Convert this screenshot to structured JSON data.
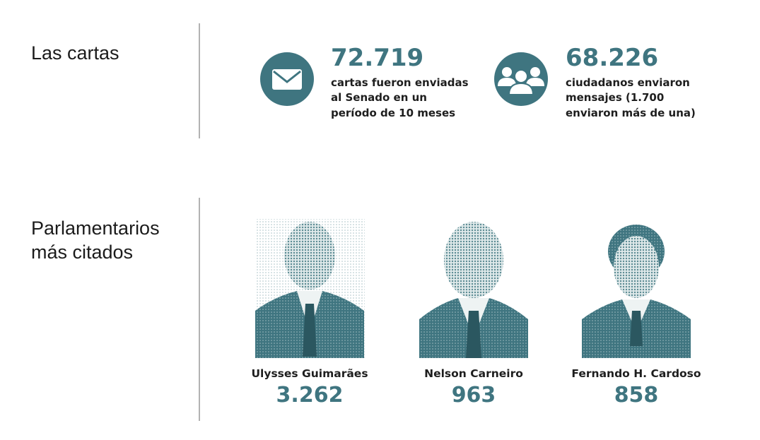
{
  "sections": [
    {
      "title": "Las cartas",
      "stats": [
        {
          "value": "72.719",
          "lines": [
            "cartas fueron enviadas",
            "al Senado en un",
            "período de 10 meses"
          ]
        },
        {
          "value": "68.226",
          "lines": [
            "ciudadanos enviaron",
            "mensajes (1.700",
            "enviaron más de una)"
          ]
        }
      ]
    },
    {
      "title_lines": [
        "Parlamentarios",
        "más citados"
      ],
      "people": [
        {
          "name": "Ulysses Guimarães",
          "count": "3.262"
        },
        {
          "name": "Nelson Carneiro",
          "count": "963"
        },
        {
          "name": "Fernando H. Cardoso",
          "count": "858"
        }
      ]
    }
  ]
}
